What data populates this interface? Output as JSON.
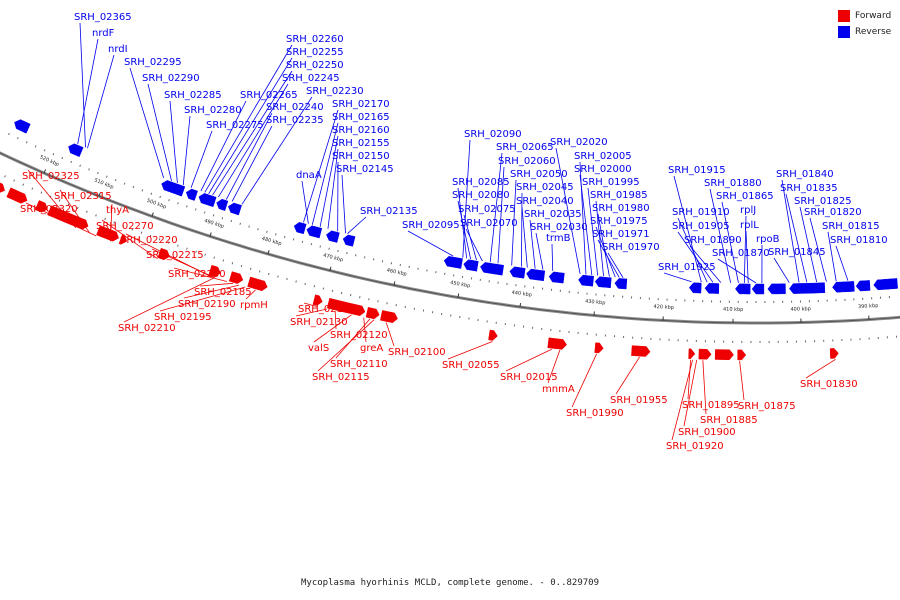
{
  "title": "Mycoplasma hyorhinis MCLD, complete genome. - 0..829709",
  "legend": {
    "forward_label": "Forward",
    "forward_color": "#ee0000",
    "reverse_label": "Reverse",
    "reverse_color": "#0000ee"
  },
  "ticks": [
    "520 kbp",
    "510 kbp",
    "500 kbp",
    "490 kbp",
    "480 kbp",
    "470 kbp",
    "460 kbp",
    "450 kbp",
    "440 kbp",
    "430 kbp",
    "420 kbp",
    "410 kbp",
    "400 kbp",
    "390 kbp"
  ],
  "reverse_labels": [
    "SRH_02365",
    "nrdF",
    "nrdI",
    "SRH_02295",
    "SRH_02290",
    "SRH_02285",
    "SRH_02280",
    "SRH_02275",
    "SRH_02265",
    "SRH_02260",
    "SRH_02255",
    "SRH_02250",
    "SRH_02245",
    "SRH_02240",
    "SRH_02235",
    "SRH_02230",
    "SRH_02170",
    "SRH_02165",
    "SRH_02160",
    "SRH_02155",
    "SRH_02150",
    "SRH_02145",
    "dnaA",
    "SRH_02135",
    "SRH_02095",
    "SRH_02090",
    "SRH_02085",
    "SRH_02080",
    "SRH_02075",
    "SRH_02070",
    "SRH_02065",
    "SRH_02060",
    "SRH_02050",
    "SRH_02045",
    "SRH_02040",
    "SRH_02035",
    "SRH_02030",
    "trmB",
    "SRH_02020",
    "SRH_02005",
    "SRH_02000",
    "SRH_01995",
    "SRH_01985",
    "SRH_01980",
    "SRH_01975",
    "SRH_01971",
    "SRH_01970",
    "SRH_01925",
    "SRH_01915",
    "SRH_01910",
    "SRH_01905",
    "SRH_01890",
    "SRH_01880",
    "SRH_01865",
    "rplJ",
    "rplL",
    "SRH_01870",
    "rpoB",
    "SRH_01845",
    "SRH_01840",
    "SRH_01835",
    "SRH_01825",
    "SRH_01820",
    "SRH_01815",
    "SRH_01810"
  ],
  "forward_labels": [
    "SRH_02325",
    "SRH_02315",
    "SRH_02320",
    "thyA",
    "SRH_02270",
    "SRH_02220",
    "SRH_02215",
    "SRH_02200",
    "SRH_02185",
    "SRH_02190",
    "SRH_02195",
    "rpmH",
    "SRH_02210",
    "SRH_02140",
    "SRH_02130",
    "SRH_02120",
    "valS",
    "greA",
    "SRH_02110",
    "SRH_02115",
    "SRH_02100",
    "SRH_02055",
    "SRH_02015",
    "mnmA",
    "SRH_01990",
    "SRH_01955",
    "SRH_01895",
    "SRH_01885",
    "SRH_01900",
    "SRH_01920",
    "SRH_01875",
    "SRH_01830"
  ]
}
